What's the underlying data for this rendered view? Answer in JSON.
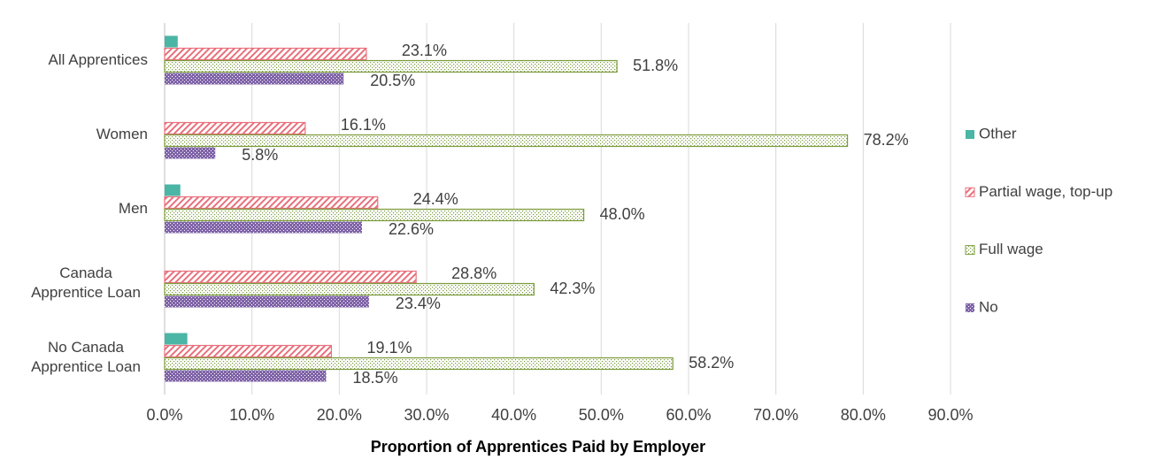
{
  "chart_data": {
    "type": "hbar",
    "categories": [
      "All Apprentices",
      "Women",
      "Men",
      "Canada Apprentice Loan",
      "No Canada Apprentice Loan"
    ],
    "series": [
      {
        "name": "Other",
        "color": "#4bb5a6",
        "pattern": "solid",
        "values": [
          1.5,
          null,
          1.8,
          null,
          2.6
        ]
      },
      {
        "name": "Partial wage, top-up",
        "color": "#e8707c",
        "pattern": "hatch",
        "values": [
          23.1,
          16.1,
          24.4,
          28.8,
          19.1
        ],
        "value_labels": [
          "23.1%",
          "16.1%",
          "24.4%",
          "28.8%",
          "19.1%"
        ]
      },
      {
        "name": "Full wage",
        "color": "#7b9c3c",
        "pattern": "dots",
        "values": [
          51.8,
          78.2,
          48.0,
          42.3,
          58.2
        ],
        "value_labels": [
          "51.8%",
          "78.2%",
          "48.0%",
          "42.3%",
          "58.2%"
        ]
      },
      {
        "name": "No",
        "color": "#8064a8",
        "pattern": "dots-dark",
        "values": [
          20.5,
          5.8,
          22.6,
          23.4,
          18.5
        ],
        "value_labels": [
          "20.5%",
          "5.8%",
          "22.6%",
          "23.4%",
          "18.5%"
        ]
      }
    ],
    "xlabel": "Proportion of Apprentices Paid by Employer",
    "xlim": [
      0,
      90
    ],
    "xticks": [
      {
        "value": 0,
        "label": "0.0%"
      },
      {
        "value": 10,
        "label": "10.0%"
      },
      {
        "value": 20,
        "label": "20.0%"
      },
      {
        "value": 30,
        "label": "30.0%"
      },
      {
        "value": 40,
        "label": "40.0%"
      },
      {
        "value": 50,
        "label": "50.0%"
      },
      {
        "value": 60,
        "label": "60.0%"
      },
      {
        "value": 70,
        "label": "70.0%"
      },
      {
        "value": 80,
        "label": "80.0%"
      },
      {
        "value": 90,
        "label": "90.0%"
      }
    ],
    "grid": true,
    "legend": "right"
  }
}
